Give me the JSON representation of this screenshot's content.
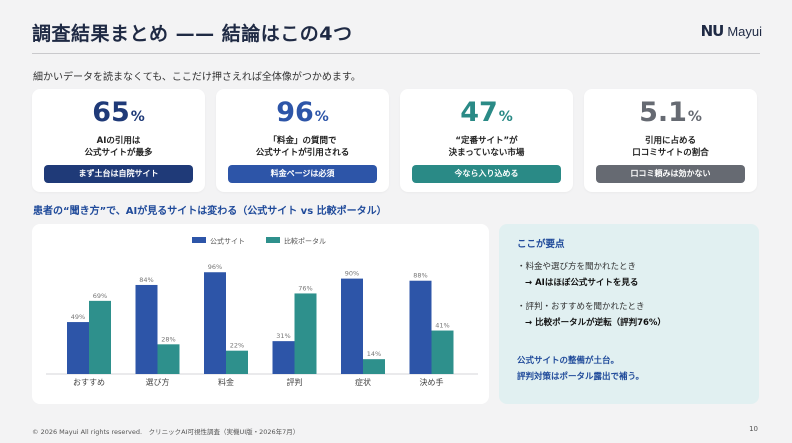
{
  "header": {
    "title": "調査結果まとめ —— 結論はこの4つ",
    "logo_mark": "NU",
    "logo_text": "Mayui",
    "lead": "細かいデータを読まなくても、ここだけ押さえれば全体像がつかめます。"
  },
  "cards": [
    {
      "value": "65",
      "unit": "%",
      "line1": "AIの引用は",
      "line2": "公式サイトが最多",
      "tag": "まず土台は自院サイト",
      "color": "#1f3a78",
      "tag_color": "#1f3a78"
    },
    {
      "value": "96",
      "unit": "%",
      "line1": "「料金」の質問で",
      "line2": "公式サイトが引用される",
      "tag": "料金ページは必須",
      "color": "#2d55a8",
      "tag_color": "#2d55a8"
    },
    {
      "value": "47",
      "unit": "%",
      "line1": "“定番サイト”が",
      "line2": "決まっていない市場",
      "tag": "今なら入り込める",
      "color": "#2a8a86",
      "tag_color": "#2a8a86"
    },
    {
      "value": "5.1",
      "unit": "%",
      "line1": "引用に占める",
      "line2": "口コミサイトの割合",
      "tag": "口コミ頼みは効かない",
      "color": "#666a72",
      "tag_color": "#666a72"
    }
  ],
  "section": {
    "subtitle": "患者の“聞き方”で、AIが見るサイトは変わる（公式サイト vs 比較ポータル）"
  },
  "chart_data": {
    "type": "bar",
    "categories": [
      "おすすめ",
      "選び方",
      "料金",
      "評判",
      "症状",
      "決め手"
    ],
    "series": [
      {
        "name": "公式サイト",
        "values": [
          49,
          84,
          96,
          31,
          90,
          88
        ],
        "labels": [
          "49%",
          "84%",
          "96%",
          "31%",
          "90%",
          "88%"
        ],
        "color": "#2d55a8"
      },
      {
        "name": "比較ポータル",
        "values": [
          69,
          28,
          22,
          76,
          14,
          41
        ],
        "labels": [
          "69%",
          "28%",
          "22%",
          "76%",
          "14%",
          "41%"
        ],
        "color": "#2e908c"
      }
    ],
    "ylim": [
      0,
      100
    ],
    "legend": "top-center",
    "grid": false
  },
  "points": {
    "heading": "ここが要点",
    "q1": "・料金や選び方を聞かれたとき",
    "a1": "→ AIはほぼ公式サイトを見る",
    "q2": "・評判・おすすめを聞かれたとき",
    "a2": "→ 比較ポータルが逆転（評判76%）",
    "c1": "公式サイトの整備が土台。",
    "c2": "評判対策はポータル露出で補う。"
  },
  "footer": {
    "text": "© 2026 Mayui All rights reserved.　クリニックAI可視性調査（実機UI版・2026年7月）",
    "page": "10"
  }
}
